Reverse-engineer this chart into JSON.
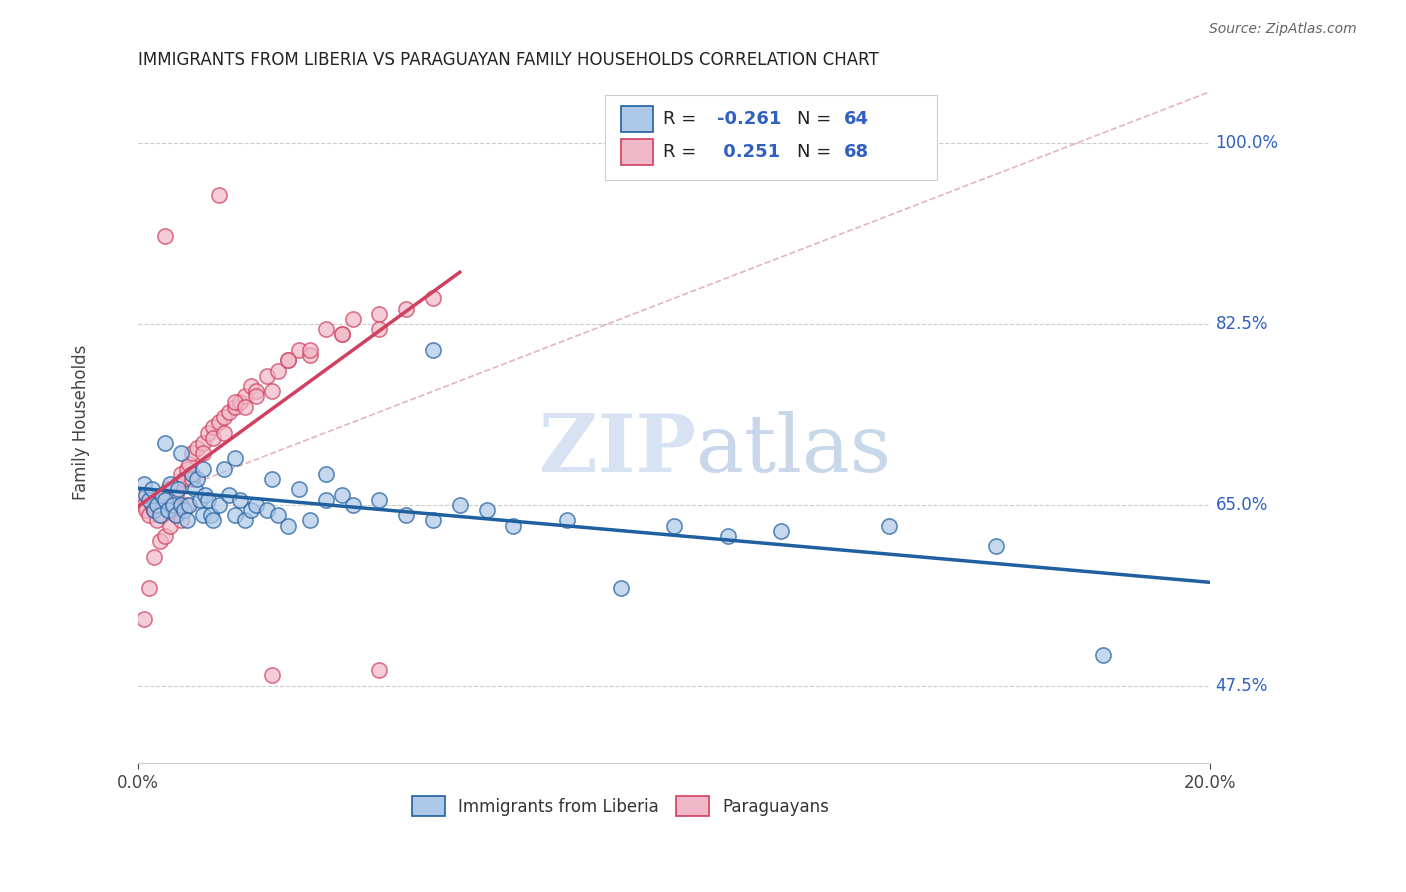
{
  "title": "IMMIGRANTS FROM LIBERIA VS PARAGUAYAN FAMILY HOUSEHOLDS CORRELATION CHART",
  "source": "Source: ZipAtlas.com",
  "ylabel": "Family Households",
  "yticks": [
    47.5,
    65.0,
    82.5,
    100.0
  ],
  "ytick_labels": [
    "47.5%",
    "65.0%",
    "82.5%",
    "100.0%"
  ],
  "xtick_labels": [
    "0.0%",
    "20.0%"
  ],
  "xmin": 0.0,
  "xmax": 20.0,
  "ymin": 40.0,
  "ymax": 106.0,
  "watermark_zip": "ZIP",
  "watermark_atlas": "atlas",
  "legend_label1": "Immigrants from Liberia",
  "legend_label2": "Paraguayans",
  "color_blue": "#aec8e8",
  "color_blue_line": "#2060a0",
  "color_pink": "#f0b8c8",
  "color_pink_line": "#d04060",
  "color_text": "#3060c0",
  "ref_line_color": "#e0a0b0",
  "blue_scatter_x": [
    0.1,
    0.15,
    0.2,
    0.25,
    0.3,
    0.35,
    0.4,
    0.45,
    0.5,
    0.55,
    0.6,
    0.65,
    0.7,
    0.75,
    0.8,
    0.85,
    0.9,
    0.95,
    1.0,
    1.05,
    1.1,
    1.15,
    1.2,
    1.25,
    1.3,
    1.35,
    1.4,
    1.5,
    1.6,
    1.7,
    1.8,
    1.9,
    2.0,
    2.1,
    2.2,
    2.4,
    2.6,
    2.8,
    3.0,
    3.2,
    3.5,
    3.8,
    4.0,
    4.5,
    5.0,
    5.5,
    6.0,
    6.5,
    7.0,
    8.0,
    9.0,
    10.0,
    11.0,
    12.0,
    14.0,
    16.0,
    18.0,
    0.5,
    0.8,
    1.2,
    1.8,
    2.5,
    3.5,
    5.5
  ],
  "blue_scatter_y": [
    67.0,
    66.0,
    65.5,
    66.5,
    64.5,
    65.0,
    64.0,
    66.0,
    65.5,
    64.5,
    67.0,
    65.0,
    64.0,
    66.5,
    65.0,
    64.5,
    63.5,
    65.0,
    68.0,
    66.5,
    67.5,
    65.5,
    64.0,
    66.0,
    65.5,
    64.0,
    63.5,
    65.0,
    68.5,
    66.0,
    64.0,
    65.5,
    63.5,
    64.5,
    65.0,
    64.5,
    64.0,
    63.0,
    66.5,
    63.5,
    65.5,
    66.0,
    65.0,
    65.5,
    64.0,
    63.5,
    65.0,
    64.5,
    63.0,
    63.5,
    57.0,
    63.0,
    62.0,
    62.5,
    63.0,
    61.0,
    50.5,
    71.0,
    70.0,
    68.5,
    69.5,
    67.5,
    68.0,
    80.0
  ],
  "pink_scatter_x": [
    0.05,
    0.1,
    0.15,
    0.2,
    0.25,
    0.3,
    0.35,
    0.4,
    0.45,
    0.5,
    0.55,
    0.6,
    0.65,
    0.7,
    0.75,
    0.8,
    0.85,
    0.9,
    0.95,
    1.0,
    1.1,
    1.2,
    1.3,
    1.4,
    1.5,
    1.6,
    1.7,
    1.8,
    1.9,
    2.0,
    2.1,
    2.2,
    2.4,
    2.6,
    2.8,
    3.0,
    3.2,
    3.5,
    3.8,
    4.0,
    4.5,
    5.0,
    5.5,
    0.1,
    0.2,
    0.3,
    0.4,
    0.5,
    0.6,
    0.7,
    0.8,
    0.9,
    1.0,
    1.2,
    1.4,
    1.6,
    1.8,
    2.0,
    2.2,
    2.5,
    2.8,
    3.2,
    3.8,
    4.5,
    2.5,
    4.5,
    0.5,
    1.5
  ],
  "pink_scatter_y": [
    66.0,
    65.0,
    64.5,
    64.0,
    65.0,
    64.5,
    63.5,
    65.0,
    64.0,
    65.5,
    66.5,
    65.0,
    64.5,
    66.0,
    67.0,
    68.0,
    67.5,
    68.5,
    69.0,
    70.0,
    70.5,
    71.0,
    72.0,
    72.5,
    73.0,
    73.5,
    74.0,
    74.5,
    75.0,
    75.5,
    76.5,
    76.0,
    77.5,
    78.0,
    79.0,
    80.0,
    79.5,
    82.0,
    81.5,
    83.0,
    83.5,
    84.0,
    85.0,
    54.0,
    57.0,
    60.0,
    61.5,
    62.0,
    63.0,
    64.0,
    63.5,
    65.0,
    67.5,
    70.0,
    71.5,
    72.0,
    75.0,
    74.5,
    75.5,
    76.0,
    79.0,
    80.0,
    81.5,
    82.0,
    48.5,
    49.0,
    91.0,
    95.0
  ]
}
